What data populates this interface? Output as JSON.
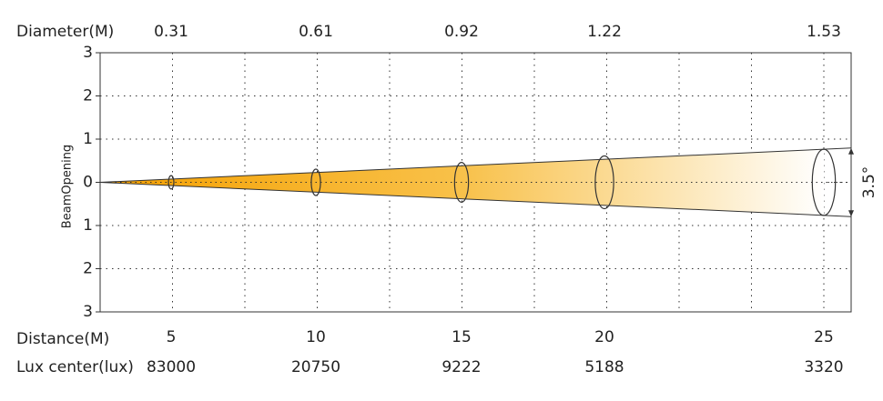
{
  "chart_data": {
    "type": "beam",
    "y_label": "BeamOpening",
    "diameter_label": "Diameter(M)",
    "distance_label": "Distance(M)",
    "lux_label": "Lux center(lux)",
    "angle_label": "3.5°",
    "categories": [
      5,
      10,
      15,
      20,
      25
    ],
    "series": [
      {
        "name": "Diameter(M)",
        "values": [
          0.31,
          0.61,
          0.92,
          1.22,
          1.53
        ]
      },
      {
        "name": "Lux center(lux)",
        "values": [
          83000,
          20750,
          9222,
          5188,
          3320
        ]
      }
    ],
    "ylim": [
      -3,
      3
    ],
    "yticks": [
      {
        "value": -3,
        "label": "3"
      },
      {
        "value": -2,
        "label": "2"
      },
      {
        "value": -1,
        "label": "1"
      },
      0,
      1,
      2,
      3
    ],
    "grid": true,
    "color": "#f5a300"
  }
}
